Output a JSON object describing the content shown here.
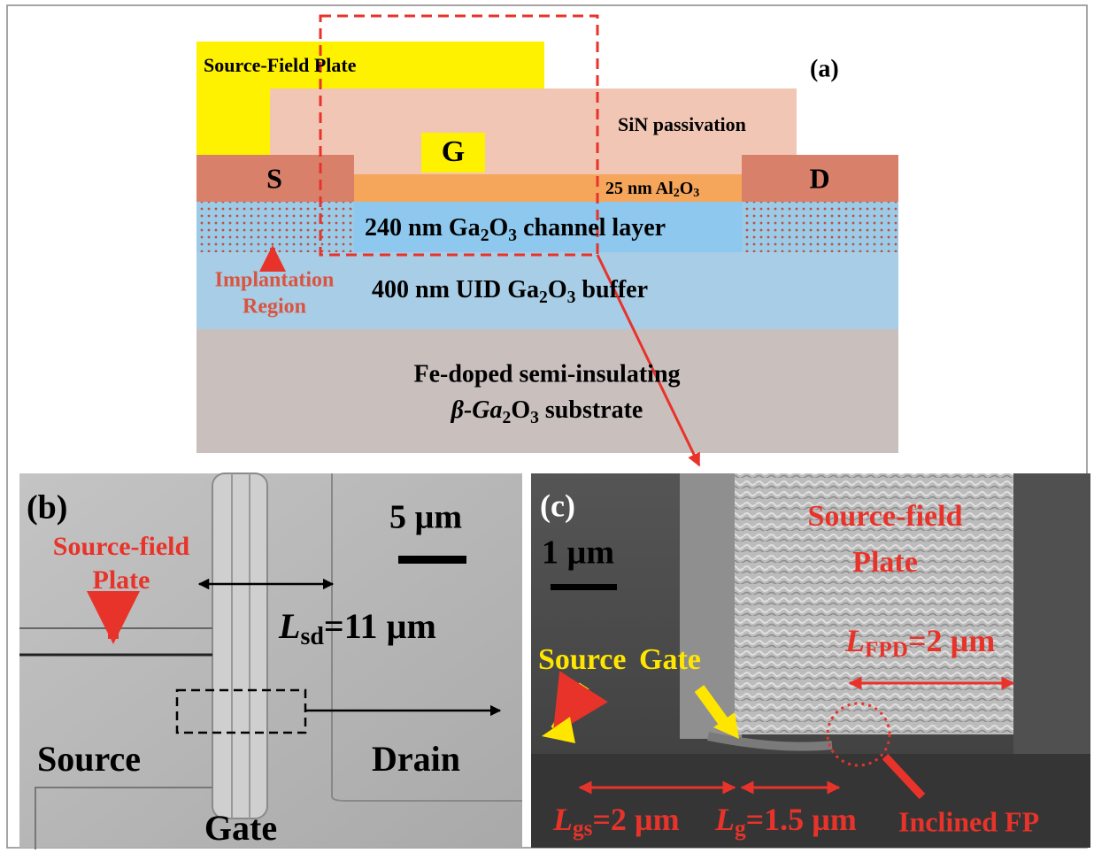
{
  "panel_a": {
    "label": "(a)",
    "source_field_plate": "Source-Field Plate",
    "sin": "SiN passivation",
    "gate": "G",
    "source": "S",
    "drain": "D",
    "oxide": [
      "25 nm Al",
      "2",
      "O",
      "3"
    ],
    "channel": [
      "240 nm Ga",
      "2",
      "O",
      "3",
      " channel layer"
    ],
    "buffer": [
      "400 nm UID Ga",
      "2",
      "O",
      "3",
      " buffer"
    ],
    "implant": [
      "Implantation",
      "Region"
    ],
    "substrate_line1": "Fe-doped semi-insulating",
    "substrate_line2": [
      "β-Ga",
      "2",
      "O",
      "3",
      " substrate"
    ]
  },
  "panel_b": {
    "label": "(b)",
    "scale": "5 µm",
    "field_plate": [
      "Source-field",
      "Plate"
    ],
    "lsd": [
      "L",
      "sd",
      "=11 µm"
    ],
    "source": "Source",
    "drain": "Drain",
    "gate": "Gate"
  },
  "panel_c": {
    "label": "(c)",
    "scale": "1 µm",
    "field_plate": [
      "Source-field",
      "Plate"
    ],
    "source": "Source",
    "gate": "Gate",
    "lfpd": [
      "L",
      "FPD",
      "=2 µm"
    ],
    "lgs": [
      "L",
      "gs",
      "=2 µm"
    ],
    "lg": [
      "L",
      "g",
      "=1.5 µm"
    ],
    "inclined": "Inclined FP"
  }
}
